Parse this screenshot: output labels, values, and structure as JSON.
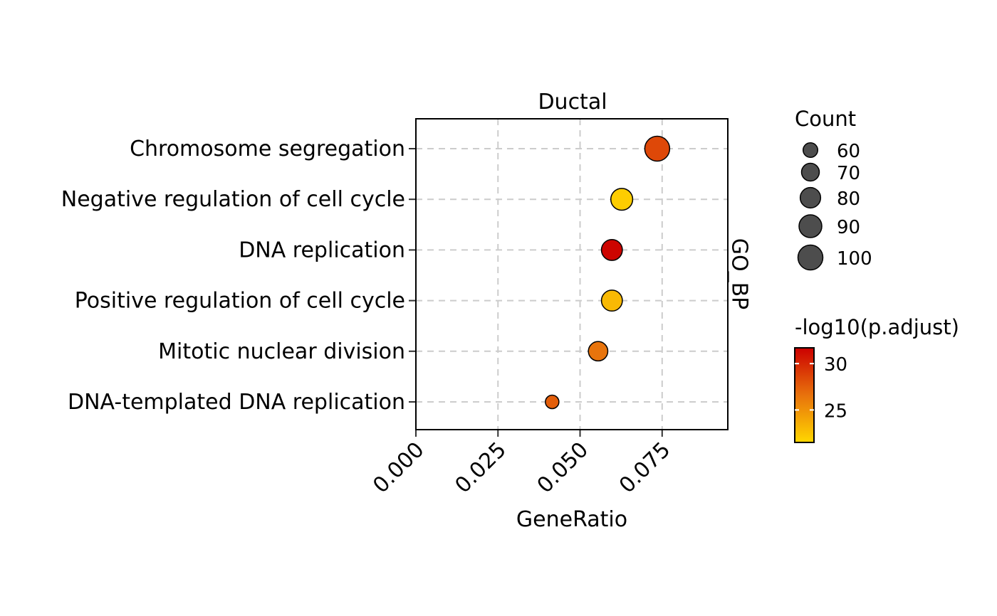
{
  "chart_data": {
    "type": "scatter",
    "title": "",
    "panel_label": "Ductal",
    "facet_label": "GO_BP",
    "xlabel": "GeneRatio",
    "ylabel": "",
    "xlim": [
      0,
      0.095
    ],
    "x_ticks": [
      0.0,
      0.025,
      0.05,
      0.075
    ],
    "x_tick_labels": [
      "0.000",
      "0.025",
      "0.050",
      "0.075"
    ],
    "grid": true,
    "categories": [
      "Chromosome segregation",
      "Negative regulation of cell cycle",
      "DNA replication",
      "Positive regulation of cell cycle",
      "Mitotic nuclear division",
      "DNA-templated DNA replication"
    ],
    "points": [
      {
        "term": "Chromosome segregation",
        "gene_ratio": 0.0735,
        "count": 100,
        "neg_log10_padj": 28.5
      },
      {
        "term": "Negative regulation of cell cycle",
        "gene_ratio": 0.0627,
        "count": 86,
        "neg_log10_padj": 22.0
      },
      {
        "term": "DNA replication",
        "gene_ratio": 0.0597,
        "count": 82,
        "neg_log10_padj": 31.5
      },
      {
        "term": "Positive regulation of cell cycle",
        "gene_ratio": 0.0597,
        "count": 82,
        "neg_log10_padj": 23.0
      },
      {
        "term": "Mitotic nuclear division",
        "gene_ratio": 0.0555,
        "count": 76,
        "neg_log10_padj": 26.5
      },
      {
        "term": "DNA-templated DNA replication",
        "gene_ratio": 0.0415,
        "count": 57,
        "neg_log10_padj": 27.5
      }
    ],
    "size_legend": {
      "title": "Count",
      "breaks": [
        60,
        70,
        80,
        90,
        100
      ],
      "labels": [
        "60",
        "70",
        "80",
        "90",
        "100"
      ]
    },
    "color_legend": {
      "title": "-log10(p.adjust)",
      "range": [
        21.5,
        31.7
      ],
      "breaks": [
        25,
        30
      ],
      "labels": [
        "25",
        "30"
      ],
      "low_color": "#ffd700",
      "mid_color": "#e8720c",
      "high_color": "#cc0000"
    },
    "legend_position": "right"
  }
}
